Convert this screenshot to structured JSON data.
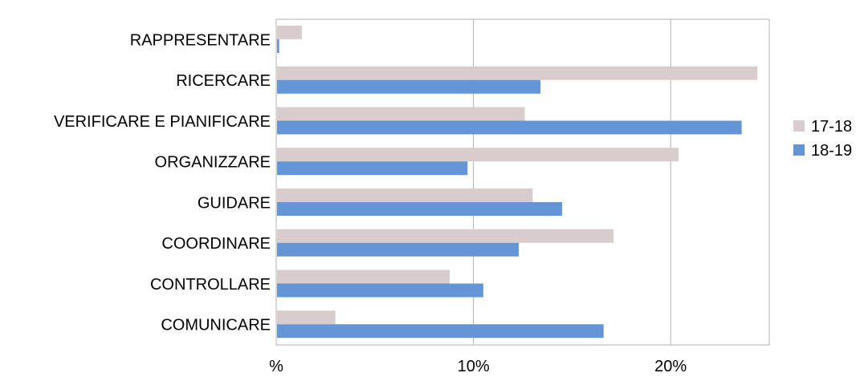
{
  "chart_data": {
    "type": "bar",
    "orientation": "horizontal",
    "categories": [
      "RAPPRESENTARE",
      "RICERCARE",
      "VERIFICARE E PIANIFICARE",
      "ORGANIZZARE",
      "GUIDARE",
      "COORDINARE",
      "CONTROLLARE",
      "COMUNICARE"
    ],
    "series": [
      {
        "name": "17-18",
        "color": "#d9cccc",
        "values": [
          1.3,
          24.4,
          12.6,
          20.4,
          13.0,
          17.1,
          8.8,
          3.0
        ]
      },
      {
        "name": "18-19",
        "color": "#6495d7",
        "values": [
          0.15,
          13.4,
          23.6,
          9.7,
          14.5,
          12.3,
          10.5,
          16.6
        ]
      }
    ],
    "xlim": [
      0,
      25
    ],
    "xticks": [
      0,
      10,
      20
    ],
    "xtick_labels": [
      "%",
      "10%",
      "20%"
    ],
    "grid": true,
    "legend_position": "right",
    "title": "",
    "xlabel": "",
    "ylabel": ""
  }
}
